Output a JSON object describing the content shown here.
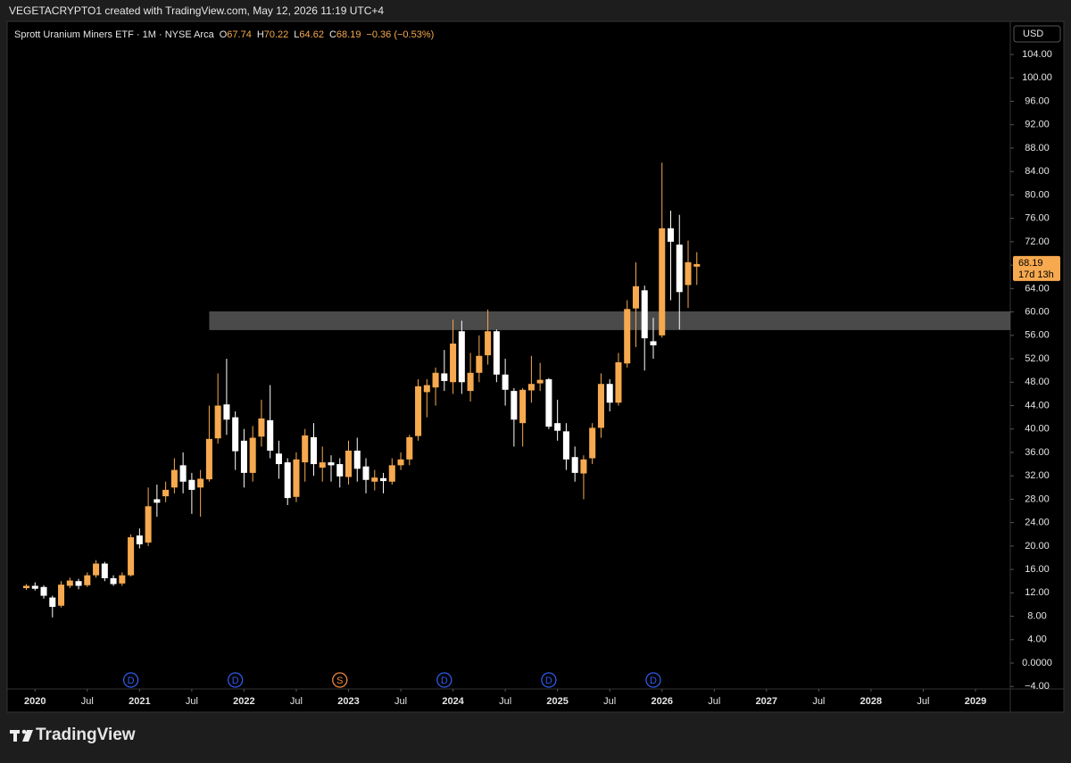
{
  "header": "VEGETACRYPTO1 created with TradingView.com, May 12, 2026 11:19 UTC+4",
  "footer": {
    "logo": "TradingView"
  },
  "chart_data": {
    "type": "candlestick",
    "title": "Sprott Uranium Miners ETF · 1M · NYSE Arca",
    "ohlc_labels": [
      "O",
      "H",
      "L",
      "C"
    ],
    "change_label": "−0.36 (−0.53%)",
    "currency": "USD",
    "countdown": "17d 13h",
    "up_color": "#f6a94f",
    "down_color": "#ffffff",
    "x": [
      "2019-12",
      "2020-01",
      "2020-02",
      "2020-03",
      "2020-04",
      "2020-05",
      "2020-06",
      "2020-07",
      "2020-08",
      "2020-09",
      "2020-10",
      "2020-11",
      "2020-12",
      "2021-01",
      "2021-02",
      "2021-03",
      "2021-04",
      "2021-05",
      "2021-06",
      "2021-07",
      "2021-08",
      "2021-09",
      "2021-10",
      "2021-11",
      "2021-12",
      "2022-01",
      "2022-02",
      "2022-03",
      "2022-04",
      "2022-05",
      "2022-06",
      "2022-07",
      "2022-08",
      "2022-09",
      "2022-10",
      "2022-11",
      "2022-12",
      "2023-01",
      "2023-02",
      "2023-03",
      "2023-04",
      "2023-05",
      "2023-06",
      "2023-07",
      "2023-08",
      "2023-09",
      "2023-10",
      "2023-11",
      "2023-12",
      "2024-01",
      "2024-02",
      "2024-03",
      "2024-04",
      "2024-05",
      "2024-06",
      "2024-07",
      "2024-08",
      "2024-09",
      "2024-10",
      "2024-11",
      "2024-12",
      "2025-01",
      "2025-02",
      "2025-03",
      "2025-04",
      "2025-05",
      "2025-06",
      "2025-07",
      "2025-08",
      "2025-09",
      "2025-10",
      "2025-11",
      "2025-12",
      "2026-01",
      "2026-02",
      "2026-03",
      "2026-04",
      "2026-05"
    ],
    "open": [
      12.8,
      13.2,
      13,
      11.2,
      9.8,
      13.2,
      14,
      13.3,
      15,
      17,
      14.5,
      13.6,
      15,
      21.8,
      20.6,
      28,
      28.5,
      30,
      33.8,
      31.3,
      30,
      31.4,
      38.4,
      44.2,
      42,
      38,
      32.5,
      38.7,
      41.5,
      35.8,
      34.3,
      28.4,
      34.3,
      38.6,
      33.4,
      34.3,
      34,
      31.8,
      36.3,
      33.6,
      31,
      31.6,
      31,
      33.8,
      34.8,
      38.8,
      46.3,
      47.1,
      49.5,
      48,
      56.7,
      46.5,
      49.6,
      52.6,
      56.7,
      49.3,
      46.5,
      41,
      46.6,
      47.8,
      48.5,
      41,
      39.6,
      35.2,
      32.4,
      35,
      40.2,
      47.7,
      44.5,
      51.2,
      60.6,
      63.7,
      55,
      56,
      74.3,
      71.5,
      64.6,
      67.74
    ],
    "high": [
      13.5,
      13.8,
      13.3,
      11.5,
      14,
      14.6,
      14.4,
      15.5,
      17.6,
      17.3,
      15,
      15.5,
      22,
      23,
      30,
      30.5,
      31,
      35,
      36,
      32.5,
      33,
      44,
      49.5,
      52,
      43,
      40,
      40.5,
      45,
      47.5,
      38,
      35,
      36,
      40,
      41,
      37,
      35.5,
      35,
      38,
      38.5,
      35,
      33,
      32.5,
      35,
      36,
      39,
      48.5,
      48.5,
      50.5,
      53.5,
      58.7,
      58.5,
      53,
      56,
      60.4,
      57,
      52,
      47,
      47,
      52.5,
      51.3,
      48.7,
      45,
      41,
      37,
      35.5,
      41,
      49.5,
      48.5,
      53,
      62,
      68.5,
      64.5,
      59,
      85.5,
      77.3,
      76.6,
      72.2,
      70.22
    ],
    "low": [
      12.5,
      12.4,
      11,
      7.8,
      9.5,
      12.8,
      12.6,
      13,
      14.6,
      14,
      13.2,
      13.2,
      14.8,
      19.6,
      20,
      25,
      27.5,
      29,
      29,
      25.5,
      25,
      31,
      37.5,
      39,
      33,
      30,
      31,
      37,
      35,
      31.5,
      27,
      27.5,
      31,
      32,
      31,
      31,
      30,
      30.5,
      31,
      29,
      29.5,
      29,
      30.5,
      33,
      33.8,
      38,
      42,
      44,
      46.5,
      46,
      46,
      44.7,
      48,
      51,
      48,
      44,
      37,
      37,
      44.5,
      46.5,
      40,
      38,
      33,
      31,
      28,
      34,
      38.5,
      43,
      44,
      50.5,
      54,
      50,
      52,
      55.6,
      62,
      57,
      60.7,
      64.62
    ],
    "close": [
      13.2,
      12.7,
      11.5,
      9.6,
      13.4,
      14.1,
      13.2,
      15,
      17,
      14.5,
      13.5,
      15,
      21.5,
      20.3,
      26.8,
      27.4,
      29.6,
      33,
      31,
      29.6,
      31.5,
      38.3,
      44,
      41.6,
      36.2,
      32.5,
      38.5,
      41.8,
      36.3,
      34,
      28.2,
      34.8,
      38.9,
      34,
      34.3,
      33.8,
      31.9,
      36.3,
      33.2,
      31.3,
      31.7,
      31.1,
      33.8,
      34.8,
      38.6,
      47.3,
      47.5,
      49.6,
      48.2,
      54.6,
      48,
      49.6,
      52.5,
      56.7,
      49.3,
      46.7,
      41.6,
      46.7,
      47.7,
      48.4,
      40.4,
      39.7,
      34.8,
      32.5,
      34.8,
      40.2,
      47.7,
      44.5,
      51.4,
      60.5,
      64.4,
      55.5,
      54.3,
      74.3,
      72,
      63.4,
      68.5,
      68.19
    ],
    "xlim": [
      "2019-10",
      "2029-05"
    ],
    "xticks": [
      {
        "value": "2020-01",
        "label": "2020"
      },
      {
        "value": "2020-07",
        "label": "Jul"
      },
      {
        "value": "2021-01",
        "label": "2021"
      },
      {
        "value": "2021-07",
        "label": "Jul"
      },
      {
        "value": "2022-01",
        "label": "2022"
      },
      {
        "value": "2022-07",
        "label": "Jul"
      },
      {
        "value": "2023-01",
        "label": "2023"
      },
      {
        "value": "2023-07",
        "label": "Jul"
      },
      {
        "value": "2024-01",
        "label": "2024"
      },
      {
        "value": "2024-07",
        "label": "Jul"
      },
      {
        "value": "2025-01",
        "label": "2025"
      },
      {
        "value": "2025-07",
        "label": "Jul"
      },
      {
        "value": "2026-01",
        "label": "2026"
      },
      {
        "value": "2026-07",
        "label": "Jul"
      },
      {
        "value": "2027-01",
        "label": "2027"
      },
      {
        "value": "2027-07",
        "label": "Jul"
      },
      {
        "value": "2028-01",
        "label": "2028"
      },
      {
        "value": "2028-07",
        "label": "Jul"
      },
      {
        "value": "2029-01",
        "label": "2029"
      }
    ],
    "ylim": [
      -4.42,
      109.65
    ],
    "yticks": [
      {
        "value": -4,
        "label": "−4.00"
      },
      {
        "value": 0,
        "label": "0.0000"
      },
      {
        "value": 4,
        "label": "4.00"
      },
      {
        "value": 8,
        "label": "8.00"
      },
      {
        "value": 12,
        "label": "12.00"
      },
      {
        "value": 16,
        "label": "16.00"
      },
      {
        "value": 20,
        "label": "20.00"
      },
      {
        "value": 24,
        "label": "24.00"
      },
      {
        "value": 28,
        "label": "28.00"
      },
      {
        "value": 32,
        "label": "32.00"
      },
      {
        "value": 36,
        "label": "36.00"
      },
      {
        "value": 40,
        "label": "40.00"
      },
      {
        "value": 44,
        "label": "44.00"
      },
      {
        "value": 48,
        "label": "48.00"
      },
      {
        "value": 52,
        "label": "52.00"
      },
      {
        "value": 56,
        "label": "56.00"
      },
      {
        "value": 60,
        "label": "60.00"
      },
      {
        "value": 64,
        "label": "64.00"
      },
      {
        "value": 68,
        "label": "68.00"
      },
      {
        "value": 72,
        "label": "72.00"
      },
      {
        "value": 76,
        "label": "76.00"
      },
      {
        "value": 80,
        "label": "80.00"
      },
      {
        "value": 84,
        "label": "84.00"
      },
      {
        "value": 88,
        "label": "88.00"
      },
      {
        "value": 92,
        "label": "92.00"
      },
      {
        "value": 96,
        "label": "96.00"
      },
      {
        "value": 100,
        "label": "100.00"
      },
      {
        "value": 104,
        "label": "104.00"
      }
    ],
    "zone": {
      "low": 56.9,
      "high": 60.1,
      "x_start": "2021-09",
      "color": "#5c5c5c"
    },
    "events": [
      {
        "x": "2020-12",
        "label": "D",
        "color": "#2f5bea"
      },
      {
        "x": "2021-12",
        "label": "D",
        "color": "#2f5bea"
      },
      {
        "x": "2022-12",
        "label": "S",
        "color": "#f0883e"
      },
      {
        "x": "2023-12",
        "label": "D",
        "color": "#2f5bea"
      },
      {
        "x": "2024-12",
        "label": "D",
        "color": "#2f5bea"
      },
      {
        "x": "2025-12",
        "label": "D",
        "color": "#2f5bea"
      }
    ]
  }
}
